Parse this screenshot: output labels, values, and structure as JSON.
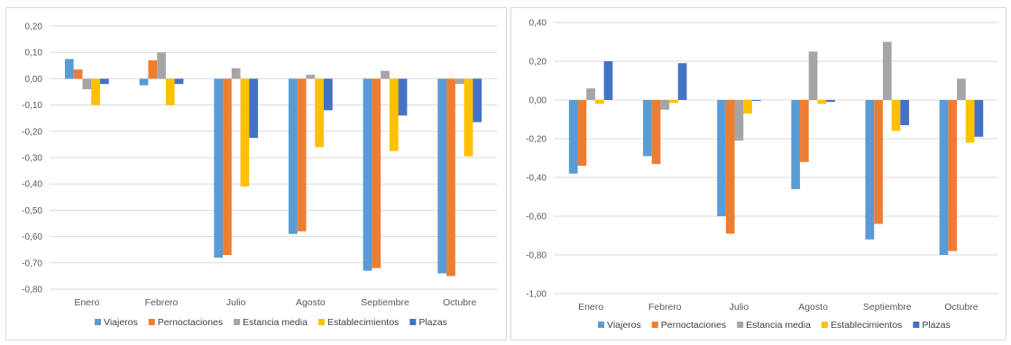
{
  "chart_data": [
    {
      "type": "bar",
      "categories": [
        "Enero",
        "Febrero",
        "Julio",
        "Agosto",
        "Septiembre",
        "Octubre"
      ],
      "series": [
        {
          "name": "Viajeros",
          "color": "#5b9bd5",
          "values": [
            0.075,
            -0.025,
            -0.68,
            -0.59,
            -0.73,
            -0.74
          ]
        },
        {
          "name": "Pernoctaciones",
          "color": "#ed7d31",
          "values": [
            0.035,
            0.07,
            -0.67,
            -0.58,
            -0.72,
            -0.75
          ]
        },
        {
          "name": "Estancia media",
          "color": "#a5a5a5",
          "values": [
            -0.04,
            0.1,
            0.04,
            0.015,
            0.03,
            -0.02
          ]
        },
        {
          "name": "Establecimientos",
          "color": "#ffc000",
          "values": [
            -0.1,
            -0.1,
            -0.41,
            -0.26,
            -0.275,
            -0.295
          ]
        },
        {
          "name": "Plazas",
          "color": "#4472c4",
          "values": [
            -0.02,
            -0.02,
            -0.225,
            -0.12,
            -0.14,
            -0.165
          ]
        }
      ],
      "ylim": [
        -0.8,
        0.2
      ],
      "yticks": [
        0.2,
        0.1,
        0.0,
        -0.1,
        -0.2,
        -0.3,
        -0.4,
        -0.5,
        -0.6,
        -0.7,
        -0.8
      ],
      "ytick_labels": [
        "0,20",
        "0,10",
        "0,00",
        "-0,10",
        "-0,20",
        "-0,30",
        "-0,40",
        "-0,50",
        "-0,60",
        "-0,70",
        "-0,80"
      ],
      "grid": true,
      "legend": "bottom"
    },
    {
      "type": "bar",
      "categories": [
        "Enero",
        "Febrero",
        "Julio",
        "Agosto",
        "Septiembre",
        "Octubre"
      ],
      "series": [
        {
          "name": "Viajeros",
          "color": "#5b9bd5",
          "values": [
            -0.38,
            -0.29,
            -0.6,
            -0.46,
            -0.72,
            -0.8
          ]
        },
        {
          "name": "Pernoctaciones",
          "color": "#ed7d31",
          "values": [
            -0.34,
            -0.33,
            -0.69,
            -0.32,
            -0.64,
            -0.78
          ]
        },
        {
          "name": "Estancia media",
          "color": "#a5a5a5",
          "values": [
            0.06,
            -0.05,
            -0.21,
            0.25,
            0.3,
            0.11
          ]
        },
        {
          "name": "Establecimientos",
          "color": "#ffc000",
          "values": [
            -0.02,
            -0.015,
            -0.07,
            -0.02,
            -0.16,
            -0.22
          ]
        },
        {
          "name": "Plazas",
          "color": "#4472c4",
          "values": [
            0.2,
            0.19,
            -0.005,
            -0.01,
            -0.13,
            -0.19
          ]
        }
      ],
      "ylim": [
        -1.0,
        0.4
      ],
      "yticks": [
        0.4,
        0.2,
        0.0,
        -0.2,
        -0.4,
        -0.6,
        -0.8,
        -1.0
      ],
      "ytick_labels": [
        "0,40",
        "0,20",
        "0,00",
        "-0,20",
        "-0,40",
        "-0,60",
        "-0,80",
        "-1,00"
      ],
      "grid": true,
      "legend": "bottom"
    }
  ]
}
